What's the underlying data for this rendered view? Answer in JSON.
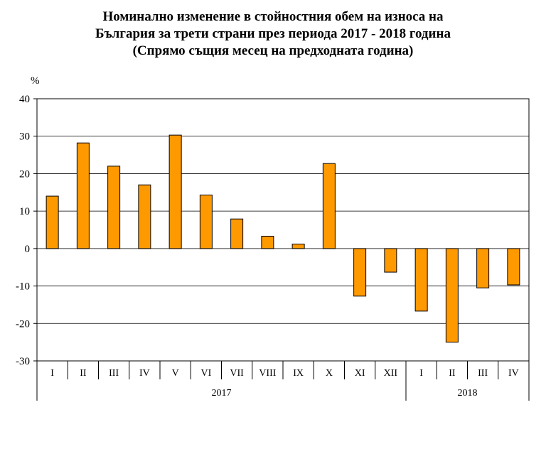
{
  "chart_data": {
    "type": "bar",
    "title_lines": [
      "Номинално изменение в стойностния обем на износа на",
      "България за трети страни през периода 2017 - 2018 година",
      "(Спрямо същия месец на предходната година)"
    ],
    "ylabel": "%",
    "ylim": [
      -30,
      40
    ],
    "yticks": [
      40,
      30,
      20,
      10,
      0,
      -10,
      -20,
      -30
    ],
    "categories": [
      "I",
      "II",
      "III",
      "IV",
      "V",
      "VI",
      "VII",
      "VIII",
      "IX",
      "X",
      "XI",
      "XII",
      "I",
      "II",
      "III",
      "IV"
    ],
    "values": [
      14.0,
      28.2,
      22.0,
      17.0,
      30.3,
      14.3,
      7.9,
      3.3,
      1.2,
      22.7,
      -12.7,
      -6.3,
      -16.7,
      -25.0,
      -10.5,
      -9.7
    ],
    "groups": [
      {
        "label": "2017",
        "count": 12
      },
      {
        "label": "2018",
        "count": 4
      }
    ],
    "grid": true,
    "legend": "none",
    "bar_color": "#FF9900"
  }
}
